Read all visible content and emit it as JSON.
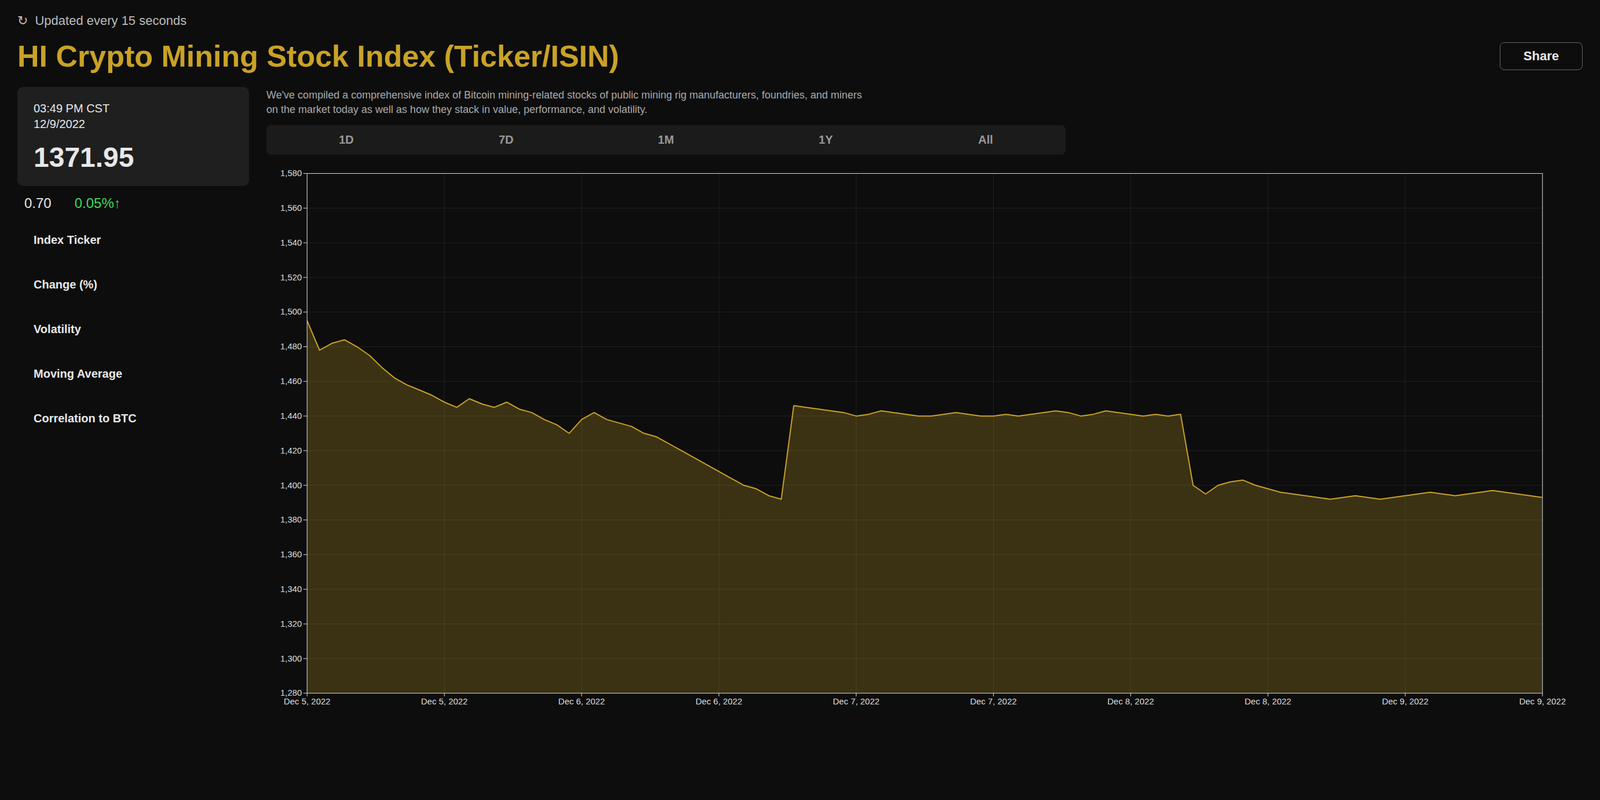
{
  "chart_data": {
    "type": "area",
    "title": "HI Crypto Mining Stock Index (Ticker/ISIN)",
    "subtitle": "Updated every 15 seconds",
    "annotations": [
      {
        "text": "↻"
      },
      {
        "text": "Share"
      },
      {
        "text": "03:49 PM CST"
      },
      {
        "text": "12/9/2022"
      },
      {
        "text": "1371.95"
      },
      {
        "text": "0.70"
      },
      {
        "text": "0.05%↑",
        "color": "#3ddc5a"
      },
      {
        "text": "We've compiled a comprehensive index of Bitcoin mining-related stocks of public mining rig manufacturers, foundries, and miners"
      },
      {
        "text": "on the market today as well as how they stack in value, performance, and volatility."
      },
      {
        "text": "1D"
      },
      {
        "text": "7D"
      },
      {
        "text": "1M"
      },
      {
        "text": "1Y"
      },
      {
        "text": "All"
      },
      {
        "text": "Index Ticker"
      },
      {
        "text": "Change (%)"
      },
      {
        "text": "Volatility"
      },
      {
        "text": "Moving Average"
      },
      {
        "text": "Correlation to BTC"
      }
    ],
    "color": "#c9a227",
    "grid": true,
    "x": [
      "Dec 5, 2022",
      null,
      null,
      null,
      null,
      null,
      null,
      null,
      null,
      null,
      null,
      "Dec 5, 2022",
      null,
      null,
      null,
      null,
      null,
      null,
      null,
      null,
      null,
      null,
      "Dec 6, 2022",
      null,
      null,
      null,
      null,
      null,
      null,
      null,
      null,
      null,
      null,
      "Dec 6, 2022",
      null,
      null,
      null,
      null,
      null,
      null,
      null,
      null,
      null,
      null,
      "Dec 7, 2022",
      null,
      null,
      null,
      null,
      null,
      null,
      null,
      null,
      null,
      null,
      "Dec 7, 2022",
      null,
      null,
      null,
      null,
      null,
      null,
      null,
      null,
      null,
      null,
      "Dec 8, 2022",
      null,
      null,
      null,
      null,
      null,
      null,
      null,
      null,
      null,
      null,
      "Dec 8, 2022",
      null,
      null,
      null,
      null,
      null,
      null,
      null,
      null,
      null,
      null,
      "Dec 9, 2022",
      null,
      null,
      null,
      null,
      null,
      null,
      null,
      null,
      null,
      null,
      "Dec 9, 2022"
    ],
    "values": [
      1495,
      1478,
      1482,
      1484,
      1480,
      1475,
      1468,
      1462,
      1458,
      1455,
      1452,
      1448,
      1445,
      1450,
      1447,
      1445,
      1448,
      1444,
      1442,
      1438,
      1435,
      1430,
      1438,
      1442,
      1438,
      1436,
      1434,
      1430,
      1428,
      1424,
      1420,
      1416,
      1412,
      1408,
      1404,
      1400,
      1398,
      1394,
      1392,
      1446,
      1445,
      1444,
      1443,
      1442,
      1440,
      1441,
      1443,
      1442,
      1441,
      1440,
      1440,
      1441,
      1442,
      1441,
      1440,
      1440,
      1441,
      1440,
      1441,
      1442,
      1443,
      1442,
      1440,
      1441,
      1443,
      1442,
      1441,
      1440,
      1441,
      1440,
      1441,
      1400,
      1395,
      1400,
      1402,
      1403,
      1400,
      1398,
      1396,
      1395,
      1394,
      1393,
      1392,
      1393,
      1394,
      1393,
      1392,
      1393,
      1394,
      1395,
      1396,
      1395,
      1394,
      1395,
      1396,
      1397,
      1396,
      1395,
      1394,
      1393
    ],
    "ylim": [
      1280,
      1580
    ],
    "yticks": [
      {
        "value": 1280,
        "label": "1,280"
      },
      {
        "value": 1300,
        "label": "1,300"
      },
      {
        "value": 1320,
        "label": "1,320"
      },
      {
        "value": 1340,
        "label": "1,340"
      },
      {
        "value": 1360,
        "label": "1,360"
      },
      {
        "value": 1380,
        "label": "1,380"
      },
      {
        "value": 1400,
        "label": "1,400"
      },
      {
        "value": 1420,
        "label": "1,420"
      },
      {
        "value": 1440,
        "label": "1,440"
      },
      {
        "value": 1460,
        "label": "1,460"
      },
      {
        "value": 1480,
        "label": "1,480"
      },
      {
        "value": 1500,
        "label": "1,500"
      },
      {
        "value": 1520,
        "label": "1,520"
      },
      {
        "value": 1540,
        "label": "1,540"
      },
      {
        "value": 1560,
        "label": "1,560"
      },
      {
        "value": 1580,
        "label": "1,580"
      }
    ]
  }
}
